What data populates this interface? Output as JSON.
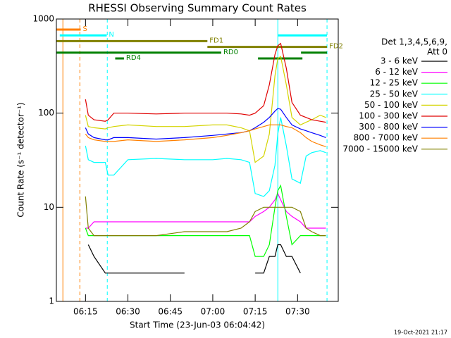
{
  "chart_data": {
    "type": "line",
    "title": "RHESSI Observing Summary Count Rates",
    "x_label": "Start Time (23-Jun-03 06:04:42)",
    "y_label": "Count Rate (s⁻¹ detector⁻¹)",
    "footer": "19-Oct-2021 21:17",
    "legend_title": [
      "Det 1,3,4,5,6,9,",
      "Att 0"
    ],
    "log_y": true,
    "xlim": [
      4.7,
      104.37
    ],
    "xticks": [
      {
        "value": 15,
        "label": "06:15"
      },
      {
        "value": 30,
        "label": "06:30"
      },
      {
        "value": 45,
        "label": "06:45"
      },
      {
        "value": 60,
        "label": "07:00"
      },
      {
        "value": 75,
        "label": "07:15"
      },
      {
        "value": 90,
        "label": "07:30"
      }
    ],
    "ylim": [
      1,
      1000
    ],
    "yticks": [
      1,
      10,
      100,
      1000
    ],
    "x": [
      15,
      16,
      18,
      22,
      23,
      25,
      30,
      40,
      50,
      60,
      65,
      70,
      73,
      75,
      78,
      80,
      82,
      83,
      84,
      86,
      88,
      91,
      93,
      95,
      98,
      100
    ],
    "series": [
      {
        "name": "3 - 6 keV",
        "color": "#000000",
        "values": [
          null,
          4,
          3,
          2,
          2,
          2,
          2,
          2,
          2,
          null,
          null,
          null,
          null,
          2,
          2,
          3,
          3,
          4,
          4,
          3,
          3,
          2,
          null,
          null,
          null,
          null
        ]
      },
      {
        "name": "6 - 12 keV",
        "color": "#ff00ff",
        "values": [
          6,
          6,
          7,
          7,
          7,
          7,
          7,
          7,
          7,
          7,
          7,
          7,
          7,
          8,
          9,
          10,
          12,
          14,
          12,
          9,
          8,
          7,
          6,
          6,
          6,
          6
        ]
      },
      {
        "name": "12 - 25 keV",
        "color": "#00ff00",
        "values": [
          6,
          5,
          5,
          5,
          5,
          5,
          5,
          5,
          5,
          5,
          5,
          5,
          5,
          3,
          3,
          4,
          10,
          15,
          17,
          8,
          4,
          5,
          5,
          5,
          5,
          5
        ]
      },
      {
        "name": "25 - 50 keV",
        "color": "#00ffff",
        "values": [
          45,
          32,
          30,
          30,
          22,
          22,
          32,
          33,
          32,
          32,
          33,
          32,
          30,
          14,
          13,
          15,
          28,
          60,
          90,
          45,
          20,
          18,
          35,
          38,
          40,
          38
        ]
      },
      {
        "name": "50 - 100 keV",
        "color": "#d4d400",
        "values": [
          95,
          72,
          70,
          68,
          70,
          72,
          75,
          72,
          72,
          75,
          75,
          70,
          65,
          30,
          35,
          60,
          250,
          380,
          400,
          200,
          90,
          75,
          80,
          85,
          95,
          90
        ]
      },
      {
        "name": "100 - 300 keV",
        "color": "#e00000",
        "values": [
          140,
          95,
          85,
          82,
          85,
          100,
          100,
          98,
          100,
          100,
          100,
          98,
          95,
          100,
          120,
          200,
          420,
          520,
          550,
          300,
          130,
          95,
          90,
          85,
          82,
          80
        ]
      },
      {
        "name": "300 - 800 keV",
        "color": "#0000ff",
        "values": [
          70,
          60,
          55,
          52,
          52,
          55,
          55,
          53,
          55,
          58,
          60,
          62,
          65,
          70,
          80,
          90,
          105,
          112,
          110,
          90,
          75,
          68,
          65,
          62,
          58,
          55
        ]
      },
      {
        "name": "800 - 7000 keV",
        "color": "#ff8000",
        "values": [
          60,
          55,
          52,
          50,
          50,
          50,
          52,
          50,
          52,
          55,
          58,
          62,
          65,
          68,
          72,
          75,
          75,
          75,
          75,
          72,
          70,
          62,
          55,
          50,
          46,
          44
        ]
      },
      {
        "name": "7000 - 15000 keV",
        "color": "#808000",
        "values": [
          13,
          6,
          5,
          5,
          5,
          5,
          5,
          5,
          5.5,
          5.5,
          5.5,
          6,
          7,
          9,
          10,
          10,
          10,
          10,
          10,
          10,
          10,
          9,
          6,
          5.5,
          5,
          5
        ]
      }
    ],
    "flags": [
      {
        "label": "S",
        "color": "#ff8000",
        "segments": [
          [
            4.7,
            13.3
          ]
        ]
      },
      {
        "label": "N",
        "color": "#00ffff",
        "segments": [
          [
            5.9,
            22.5
          ],
          [
            83,
            100.4
          ]
        ]
      },
      {
        "label": "FD1",
        "color": "#808000",
        "segments": [
          [
            4.7,
            58.1
          ]
        ]
      },
      {
        "label": "FD2",
        "color": "#808000",
        "segments": [
          [
            58.1,
            100.4
          ]
        ]
      },
      {
        "label": "RD0",
        "color": "#008000",
        "segments": [
          [
            4.7,
            63
          ],
          [
            91.2,
            100.4
          ]
        ]
      },
      {
        "label": "RD4",
        "color": "#008000",
        "segments": [
          [
            25.5,
            28.6
          ],
          [
            76,
            91.7
          ]
        ]
      }
    ],
    "vlines": [
      {
        "x": 7,
        "color": "#ff8000",
        "dashed": false
      },
      {
        "x": 13,
        "color": "#ff8000",
        "dashed": true
      },
      {
        "x": 22.7,
        "color": "#00ffff",
        "dashed": true
      },
      {
        "x": 83,
        "color": "#00ffff",
        "dashed": false
      },
      {
        "x": 100.4,
        "color": "#00ffff",
        "dashed": true
      }
    ]
  }
}
